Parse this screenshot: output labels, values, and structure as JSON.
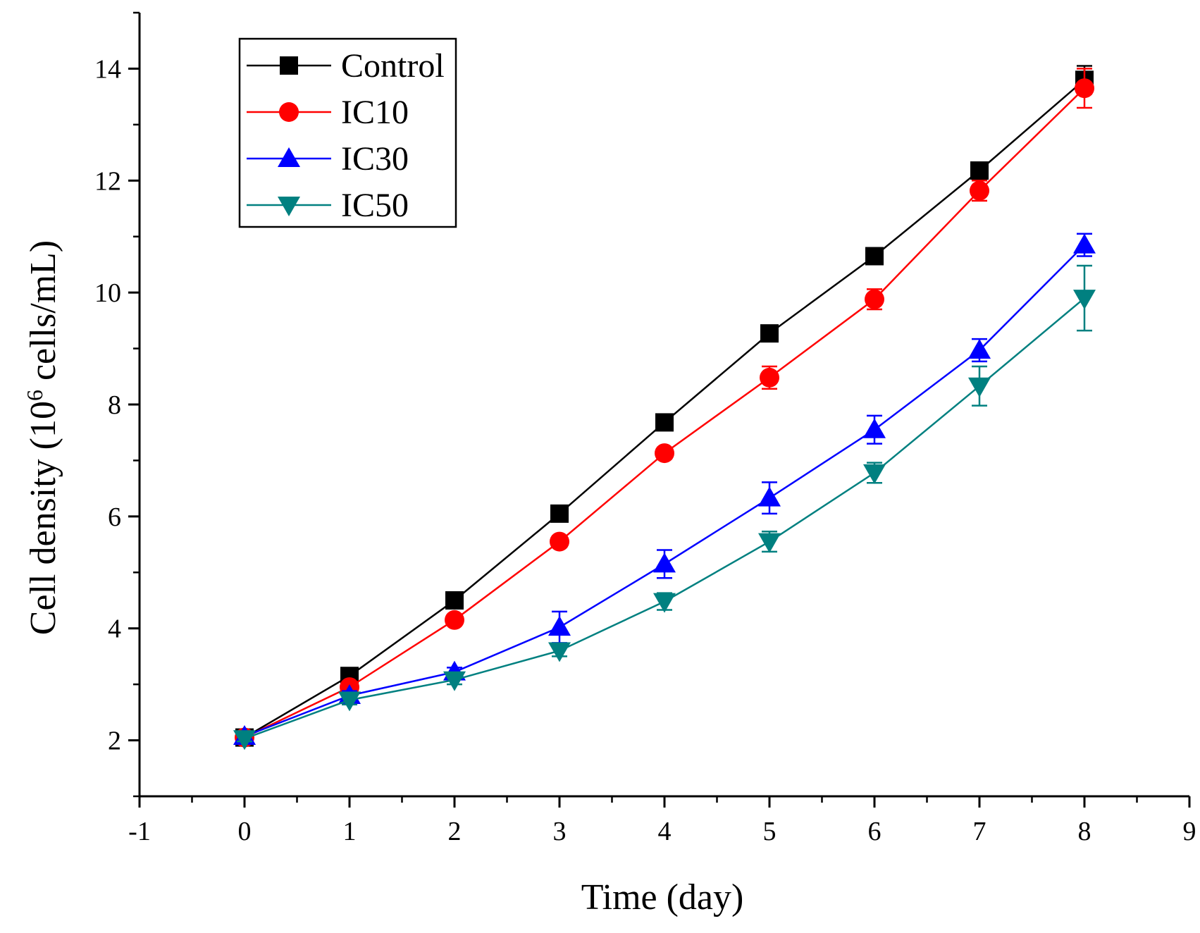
{
  "chart_data": {
    "type": "line",
    "title": "",
    "xlabel": "Time (day)",
    "ylabel_prefix": "Cell density (10",
    "ylabel_superscript": "6",
    "ylabel_suffix": " cells/mL)",
    "xlim": [
      -1,
      9
    ],
    "ylim": [
      1,
      15
    ],
    "x_ticks": [
      -1,
      0,
      1,
      2,
      3,
      4,
      5,
      6,
      7,
      8,
      9
    ],
    "y_ticks": [
      2,
      4,
      6,
      8,
      10,
      12,
      14
    ],
    "x": [
      0,
      1,
      2,
      3,
      4,
      5,
      6,
      7,
      8
    ],
    "legend_position": "top-left",
    "series": [
      {
        "name": "Control",
        "color": "#000000",
        "marker": "square",
        "values": [
          2.05,
          3.15,
          4.5,
          6.05,
          7.68,
          9.27,
          10.65,
          12.18,
          13.8
        ],
        "errors": [
          0.05,
          0.08,
          0.08,
          0.1,
          0.1,
          0.1,
          0.12,
          0.12,
          0.25
        ]
      },
      {
        "name": "IC10",
        "color": "#ff0000",
        "marker": "circle",
        "values": [
          2.05,
          2.95,
          4.15,
          5.55,
          7.13,
          8.48,
          9.88,
          11.82,
          13.65
        ],
        "errors": [
          0.05,
          0.08,
          0.08,
          0.1,
          0.1,
          0.2,
          0.18,
          0.18,
          0.35
        ]
      },
      {
        "name": "IC30",
        "color": "#0000ff",
        "marker": "triangle-up",
        "values": [
          2.07,
          2.8,
          3.22,
          4.02,
          5.15,
          6.33,
          7.55,
          8.97,
          10.85
        ],
        "errors": [
          0.05,
          0.08,
          0.08,
          0.28,
          0.25,
          0.28,
          0.25,
          0.2,
          0.2
        ]
      },
      {
        "name": "IC50",
        "color": "#008080",
        "marker": "triangle-down",
        "values": [
          2.03,
          2.72,
          3.08,
          3.6,
          4.48,
          5.55,
          6.78,
          8.33,
          9.9
        ],
        "errors": [
          0.05,
          0.08,
          0.08,
          0.1,
          0.15,
          0.18,
          0.18,
          0.35,
          0.58
        ]
      }
    ]
  }
}
